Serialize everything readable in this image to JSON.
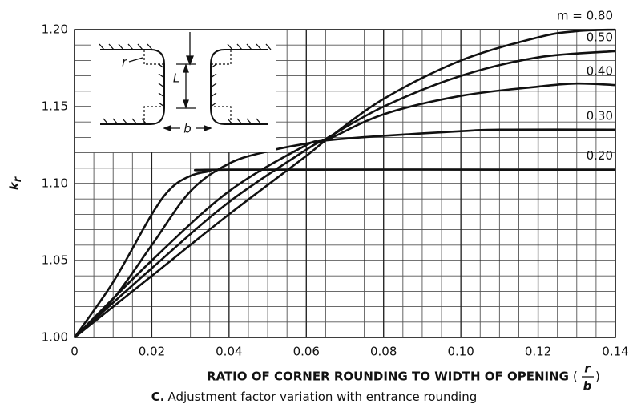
{
  "chart_data": {
    "type": "line",
    "ylabel": "k",
    "ylabel_subscript": "r",
    "xlabel": "RATIO OF CORNER ROUNDING TO WIDTH OF OPENING",
    "xlabel_fraction": [
      "r",
      "b"
    ],
    "caption_letter": "C.",
    "caption": "Adjustment factor variation with entrance rounding",
    "inset_labels": [
      "r",
      "L",
      "b"
    ],
    "xlim": [
      0,
      0.14
    ],
    "ylim": [
      1.0,
      1.2
    ],
    "xticks": [
      0,
      0.02,
      0.04,
      0.06,
      0.08,
      {
        "value": 0.1,
        "label": "0.10"
      },
      0.12,
      0.14
    ],
    "yticks": [
      {
        "value": 1.0,
        "label": "1.00"
      },
      1.05,
      {
        "value": 1.1,
        "label": "1.10"
      },
      1.15,
      {
        "value": 1.2,
        "label": "1.20"
      }
    ],
    "xgrid": [
      0,
      0.005,
      0.01,
      0.015,
      0.02,
      0.025,
      0.03,
      0.035,
      0.04,
      0.045,
      0.05,
      0.055,
      0.06,
      0.065,
      0.07,
      0.075,
      0.08,
      0.085,
      0.09,
      0.095,
      0.1,
      0.105,
      0.11,
      0.115,
      0.12,
      0.125,
      0.13,
      0.135,
      0.14
    ],
    "ygrid": [
      1.0,
      1.01,
      1.02,
      1.03,
      1.04,
      1.05,
      1.06,
      1.07,
      1.08,
      1.09,
      1.1,
      1.11,
      1.12,
      1.13,
      1.14,
      1.15,
      1.16,
      1.17,
      1.18,
      1.19,
      1.2
    ],
    "grid": true,
    "series": [
      {
        "name": "m = 0.80",
        "color": "#111111",
        "x": [
          0,
          0.02,
          0.04,
          0.06,
          0.065,
          0.08,
          0.1,
          0.12,
          0.13,
          0.14
        ],
        "values": [
          1.0,
          1.04,
          1.08,
          1.118,
          1.128,
          1.155,
          1.18,
          1.195,
          1.199,
          1.2
        ]
      },
      {
        "name": "0.50",
        "color": "#111111",
        "x": [
          0,
          0.02,
          0.04,
          0.06,
          0.065,
          0.08,
          0.1,
          0.12,
          0.14
        ],
        "values": [
          1.0,
          1.045,
          1.088,
          1.122,
          1.129,
          1.15,
          1.17,
          1.182,
          1.186
        ]
      },
      {
        "name": "0.40",
        "color": "#111111",
        "x": [
          0,
          0.02,
          0.04,
          0.06,
          0.065,
          0.08,
          0.1,
          0.12,
          0.13,
          0.14
        ],
        "values": [
          1.0,
          1.05,
          1.095,
          1.125,
          1.128,
          1.145,
          1.157,
          1.163,
          1.165,
          1.164
        ]
      },
      {
        "name": "0.30",
        "color": "#111111",
        "x": [
          0,
          0.01,
          0.02,
          0.03,
          0.04,
          0.05,
          0.06,
          0.065,
          0.08,
          0.1,
          0.11,
          0.14
        ],
        "values": [
          1.0,
          1.025,
          1.06,
          1.095,
          1.113,
          1.121,
          1.126,
          1.128,
          1.131,
          1.134,
          1.135,
          1.135
        ]
      },
      {
        "name": "0.20",
        "color": "#111111",
        "x": [
          0,
          0.01,
          0.02,
          0.025,
          0.03,
          0.035,
          0.04,
          0.14
        ],
        "values": [
          1.0,
          1.036,
          1.08,
          1.097,
          1.105,
          1.108,
          1.109,
          1.109
        ]
      }
    ]
  }
}
